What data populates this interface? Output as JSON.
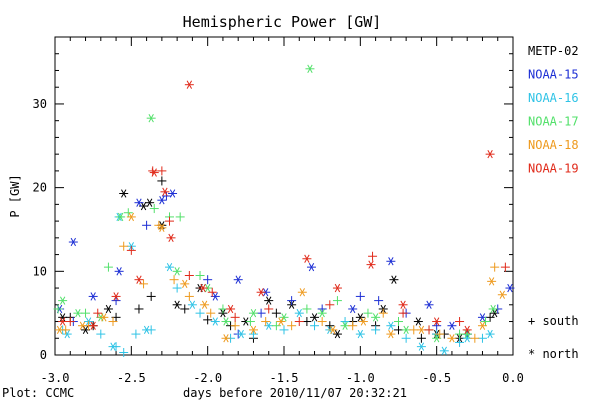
{
  "chart_data": {
    "type": "scatter",
    "title": "Hemispheric Power [GW]",
    "xlabel": "days before 2010/11/07 20:32:21",
    "ylabel": "P [GW]",
    "xlim": [
      -3.0,
      0.0
    ],
    "ylim": [
      0,
      38
    ],
    "x_ticks": [
      "-3.0",
      "-2.5",
      "-2.0",
      "-1.5",
      "-1.0",
      "-0.5",
      "0.0"
    ],
    "y_ticks": [
      "0",
      "10",
      "20",
      "30"
    ],
    "grid": false,
    "legend_placement": "right",
    "marker_key": {
      "south": "+ south",
      "north": "* north"
    },
    "footer": "Plot: CCMC",
    "series": [
      {
        "name": "METP-02",
        "color": "#000000",
        "south": [
          [
            -2.9,
            4.5
          ],
          [
            -2.75,
            3.5
          ],
          [
            -2.6,
            4.5
          ],
          [
            -2.45,
            5.5
          ],
          [
            -2.37,
            7.0
          ],
          [
            -2.3,
            20.8
          ],
          [
            -2.15,
            5.5
          ],
          [
            -2.0,
            4.2
          ],
          [
            -1.85,
            3.5
          ],
          [
            -1.7,
            2.0
          ],
          [
            -1.55,
            5.0
          ],
          [
            -1.35,
            4.0
          ],
          [
            -1.2,
            3.5
          ],
          [
            -1.05,
            4.0
          ],
          [
            -0.9,
            3.5
          ],
          [
            -0.75,
            3.0
          ],
          [
            -0.6,
            2.0
          ],
          [
            -0.45,
            2.5
          ],
          [
            -0.3,
            2.5
          ],
          [
            -0.15,
            4.5
          ]
        ],
        "north": [
          [
            -2.95,
            4.5
          ],
          [
            -2.8,
            3.0
          ],
          [
            -2.65,
            5.5
          ],
          [
            -2.55,
            19.3
          ],
          [
            -2.42,
            17.8
          ],
          [
            -2.38,
            18.2
          ],
          [
            -2.3,
            15.5
          ],
          [
            -2.2,
            6.0
          ],
          [
            -2.05,
            8.0
          ],
          [
            -1.9,
            5.0
          ],
          [
            -1.75,
            4.0
          ],
          [
            -1.6,
            6.5
          ],
          [
            -1.45,
            6.0
          ],
          [
            -1.3,
            4.5
          ],
          [
            -1.15,
            2.5
          ],
          [
            -1.0,
            4.5
          ],
          [
            -0.85,
            5.5
          ],
          [
            -0.78,
            9.0
          ],
          [
            -0.62,
            4.0
          ],
          [
            -0.5,
            2.5
          ],
          [
            -0.35,
            2.0
          ],
          [
            -0.12,
            5.0
          ]
        ]
      },
      {
        "name": "NOAA-15",
        "color": "#1c2ed4",
        "south": [
          [
            -2.88,
            4.0
          ],
          [
            -2.6,
            6.5
          ],
          [
            -2.4,
            15.5
          ],
          [
            -2.27,
            19.0
          ],
          [
            -2.0,
            9.0
          ],
          [
            -1.8,
            2.5
          ],
          [
            -1.65,
            5.0
          ],
          [
            -1.45,
            6.5
          ],
          [
            -1.25,
            5.5
          ],
          [
            -1.0,
            7.0
          ],
          [
            -0.88,
            6.5
          ],
          [
            -0.7,
            5.0
          ],
          [
            -0.5,
            3.5
          ],
          [
            -0.3,
            2.5
          ],
          [
            -0.1,
            5.5
          ]
        ],
        "north": [
          [
            -2.97,
            5.5
          ],
          [
            -2.88,
            13.5
          ],
          [
            -2.75,
            7.0
          ],
          [
            -2.58,
            10.0
          ],
          [
            -2.45,
            18.2
          ],
          [
            -2.3,
            18.5
          ],
          [
            -2.23,
            19.3
          ],
          [
            -1.95,
            7.0
          ],
          [
            -1.8,
            9.0
          ],
          [
            -1.62,
            7.5
          ],
          [
            -1.32,
            10.5
          ],
          [
            -1.05,
            5.5
          ],
          [
            -0.8,
            11.2
          ],
          [
            -0.55,
            6.0
          ],
          [
            -0.4,
            3.5
          ],
          [
            -0.2,
            4.5
          ],
          [
            -0.02,
            8.0
          ]
        ]
      },
      {
        "name": "NOAA-16",
        "color": "#2fc3e6",
        "south": [
          [
            -2.95,
            3.0
          ],
          [
            -2.7,
            2.5
          ],
          [
            -2.6,
            1.0
          ],
          [
            -2.55,
            0.3
          ],
          [
            -2.47,
            2.5
          ],
          [
            -2.37,
            3.0
          ],
          [
            -2.2,
            8.0
          ],
          [
            -2.05,
            5.0
          ],
          [
            -1.85,
            2.0
          ],
          [
            -1.7,
            2.5
          ],
          [
            -1.5,
            3.0
          ],
          [
            -1.3,
            3.5
          ],
          [
            -1.1,
            4.0
          ],
          [
            -0.9,
            3.0
          ],
          [
            -0.7,
            2.0
          ],
          [
            -0.5,
            2.5
          ],
          [
            -0.35,
            1.5
          ],
          [
            -0.2,
            2.0
          ]
        ],
        "north": [
          [
            -2.92,
            2.5
          ],
          [
            -2.78,
            4.0
          ],
          [
            -2.62,
            1.0
          ],
          [
            -2.58,
            16.5
          ],
          [
            -2.5,
            13.0
          ],
          [
            -2.4,
            3.0
          ],
          [
            -2.25,
            10.5
          ],
          [
            -2.1,
            6.0
          ],
          [
            -1.95,
            4.0
          ],
          [
            -1.78,
            2.5
          ],
          [
            -1.6,
            3.5
          ],
          [
            -1.4,
            5.0
          ],
          [
            -1.2,
            3.0
          ],
          [
            -1.0,
            2.5
          ],
          [
            -0.8,
            3.5
          ],
          [
            -0.6,
            1.0
          ],
          [
            -0.45,
            0.5
          ],
          [
            -0.3,
            2.0
          ],
          [
            -0.15,
            2.5
          ]
        ]
      },
      {
        "name": "NOAA-17",
        "color": "#52e06a",
        "south": [
          [
            -2.98,
            5.5
          ],
          [
            -2.8,
            5.0
          ],
          [
            -2.65,
            10.5
          ],
          [
            -2.52,
            17.0
          ],
          [
            -2.35,
            17.5
          ],
          [
            -2.25,
            16.5
          ],
          [
            -2.18,
            16.5
          ],
          [
            -2.05,
            9.5
          ],
          [
            -1.9,
            5.5
          ],
          [
            -1.72,
            4.0
          ],
          [
            -1.55,
            3.5
          ],
          [
            -1.35,
            5.5
          ],
          [
            -1.15,
            6.5
          ],
          [
            -0.95,
            5.0
          ],
          [
            -0.75,
            4.0
          ],
          [
            -0.55,
            3.0
          ],
          [
            -0.35,
            2.5
          ],
          [
            -0.18,
            4.0
          ]
        ],
        "north": [
          [
            -2.95,
            6.5
          ],
          [
            -2.85,
            5.0
          ],
          [
            -2.7,
            4.5
          ],
          [
            -2.57,
            16.5
          ],
          [
            -2.37,
            28.3
          ],
          [
            -2.2,
            10.0
          ],
          [
            -2.0,
            8.0
          ],
          [
            -1.88,
            4.0
          ],
          [
            -1.7,
            5.0
          ],
          [
            -1.5,
            4.5
          ],
          [
            -1.33,
            34.2
          ],
          [
            -1.25,
            5.0
          ],
          [
            -1.1,
            3.5
          ],
          [
            -0.9,
            4.5
          ],
          [
            -0.7,
            3.0
          ],
          [
            -0.5,
            2.0
          ],
          [
            -0.3,
            2.5
          ],
          [
            -0.13,
            5.5
          ]
        ]
      },
      {
        "name": "NOAA-18",
        "color": "#ee9a1e",
        "south": [
          [
            -2.93,
            3.0
          ],
          [
            -2.78,
            3.5
          ],
          [
            -2.62,
            4.0
          ],
          [
            -2.55,
            13.0
          ],
          [
            -2.42,
            8.5
          ],
          [
            -2.32,
            15.5
          ],
          [
            -2.22,
            9.0
          ],
          [
            -2.12,
            7.0
          ],
          [
            -1.98,
            5.0
          ],
          [
            -1.82,
            3.5
          ],
          [
            -1.62,
            4.0
          ],
          [
            -1.45,
            3.5
          ],
          [
            -1.25,
            4.0
          ],
          [
            -1.05,
            3.5
          ],
          [
            -0.85,
            5.0
          ],
          [
            -0.65,
            3.0
          ],
          [
            -0.48,
            2.5
          ],
          [
            -0.25,
            2.0
          ],
          [
            -0.12,
            10.5
          ]
        ],
        "north": [
          [
            -2.97,
            3.0
          ],
          [
            -2.82,
            3.5
          ],
          [
            -2.68,
            4.5
          ],
          [
            -2.5,
            16.5
          ],
          [
            -2.3,
            15.2
          ],
          [
            -2.15,
            8.5
          ],
          [
            -2.02,
            6.0
          ],
          [
            -1.88,
            2.0
          ],
          [
            -1.7,
            3.0
          ],
          [
            -1.52,
            4.0
          ],
          [
            -1.38,
            7.5
          ],
          [
            -1.18,
            3.0
          ],
          [
            -0.98,
            4.0
          ],
          [
            -0.8,
            2.5
          ],
          [
            -0.6,
            3.0
          ],
          [
            -0.4,
            2.0
          ],
          [
            -0.2,
            3.5
          ],
          [
            -0.14,
            8.8
          ],
          [
            -0.07,
            7.2
          ]
        ]
      },
      {
        "name": "NOAA-19",
        "color": "#e02a1a",
        "south": [
          [
            -2.9,
            4.0
          ],
          [
            -2.72,
            5.0
          ],
          [
            -2.5,
            12.5
          ],
          [
            -2.36,
            22.0
          ],
          [
            -2.3,
            22.0
          ],
          [
            -2.25,
            16.0
          ],
          [
            -2.12,
            9.5
          ],
          [
            -1.97,
            7.5
          ],
          [
            -1.82,
            4.5
          ],
          [
            -1.6,
            5.5
          ],
          [
            -1.4,
            4.0
          ],
          [
            -1.2,
            6.0
          ],
          [
            -0.92,
            11.8
          ],
          [
            -0.72,
            5.0
          ],
          [
            -0.55,
            3.0
          ],
          [
            -0.35,
            4.0
          ],
          [
            -0.05,
            10.5
          ]
        ],
        "north": [
          [
            -2.95,
            4.0
          ],
          [
            -2.75,
            3.5
          ],
          [
            -2.6,
            7.0
          ],
          [
            -2.45,
            9.0
          ],
          [
            -2.35,
            21.8
          ],
          [
            -2.28,
            19.5
          ],
          [
            -2.24,
            14.0
          ],
          [
            -2.12,
            32.3
          ],
          [
            -2.03,
            8.0
          ],
          [
            -1.85,
            5.5
          ],
          [
            -1.65,
            7.5
          ],
          [
            -1.35,
            11.5
          ],
          [
            -1.15,
            8.0
          ],
          [
            -0.93,
            10.8
          ],
          [
            -0.72,
            6.0
          ],
          [
            -0.5,
            4.0
          ],
          [
            -0.3,
            3.0
          ],
          [
            -0.15,
            24.0
          ]
        ]
      }
    ]
  }
}
